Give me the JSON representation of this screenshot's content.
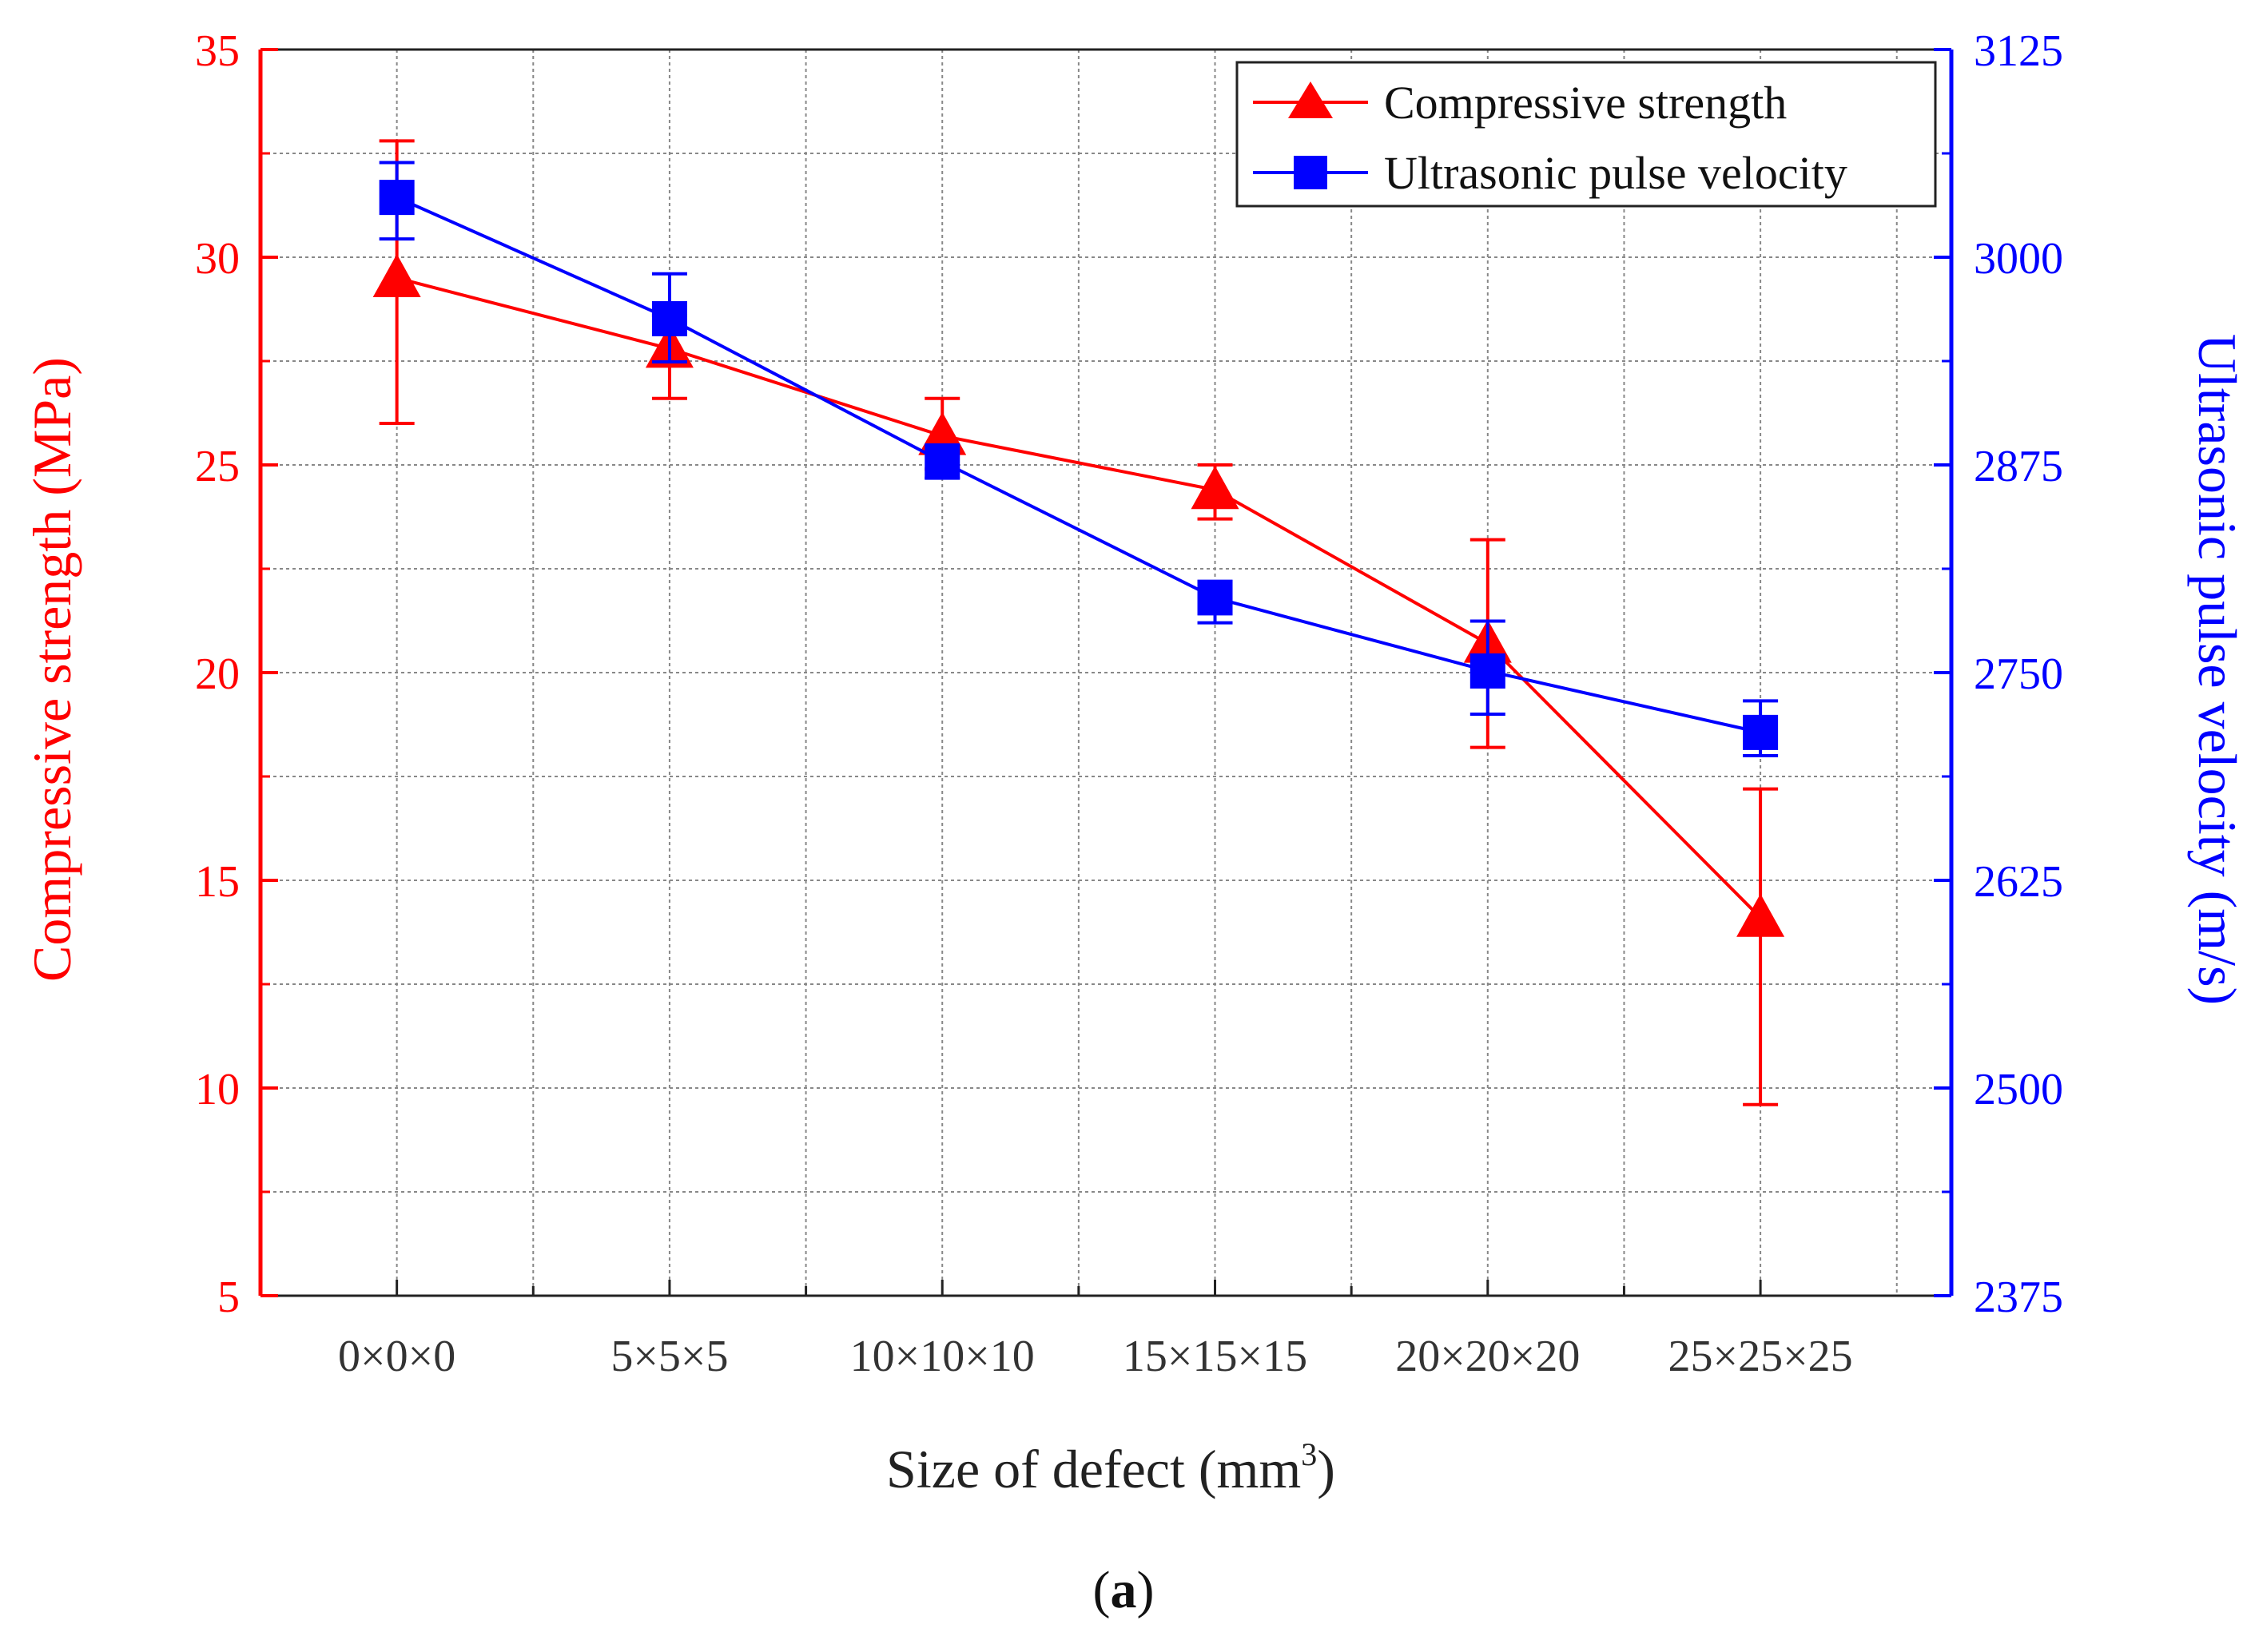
{
  "chart_data": {
    "type": "line",
    "categories": [
      "0×0×0",
      "5×5×5",
      "10×10×10",
      "15×15×15",
      "20×20×20",
      "25×25×25"
    ],
    "xlabel": "Size of defect (mm",
    "xlabel_sup": "3",
    "xlabel_close": ")",
    "y_left": {
      "label": "Compressive strength (MPa)",
      "lim": [
        5,
        35
      ],
      "ticks": [
        5,
        10,
        15,
        20,
        25,
        30,
        35
      ],
      "minor": [
        7.5,
        12.5,
        17.5,
        22.5,
        27.5,
        32.5
      ],
      "color": "#ff0000"
    },
    "y_right": {
      "label": "Ultrasonic pulse velocity (m/s)",
      "lim": [
        2375,
        3125
      ],
      "ticks": [
        2375,
        2500,
        2625,
        2750,
        2875,
        3000,
        3125
      ],
      "color": "#0000ff"
    },
    "series": [
      {
        "name": "Compressive strength",
        "axis": "left",
        "marker": "triangle",
        "color": "#ff0000",
        "values": [
          29.5,
          27.8,
          25.7,
          24.4,
          20.7,
          14.1
        ],
        "err_low": [
          26.0,
          26.6,
          24.9,
          23.7,
          18.2,
          9.6
        ],
        "err_high": [
          32.8,
          28.6,
          26.6,
          25.0,
          23.2,
          17.2
        ]
      },
      {
        "name": "Ultrasonic pulse velocity",
        "axis": "right",
        "marker": "square",
        "color": "#0000ff",
        "values": [
          3036,
          2963,
          2877,
          2795,
          2751,
          2714
        ],
        "err_low": [
          3011,
          2937,
          2867,
          2780,
          2725,
          2700
        ],
        "err_high": [
          3057,
          2990,
          2887,
          2805,
          2781,
          2733
        ]
      }
    ],
    "grid": true,
    "legend": "top-right"
  },
  "caption": {
    "open": "(",
    "bold": "a",
    "close": ")"
  }
}
